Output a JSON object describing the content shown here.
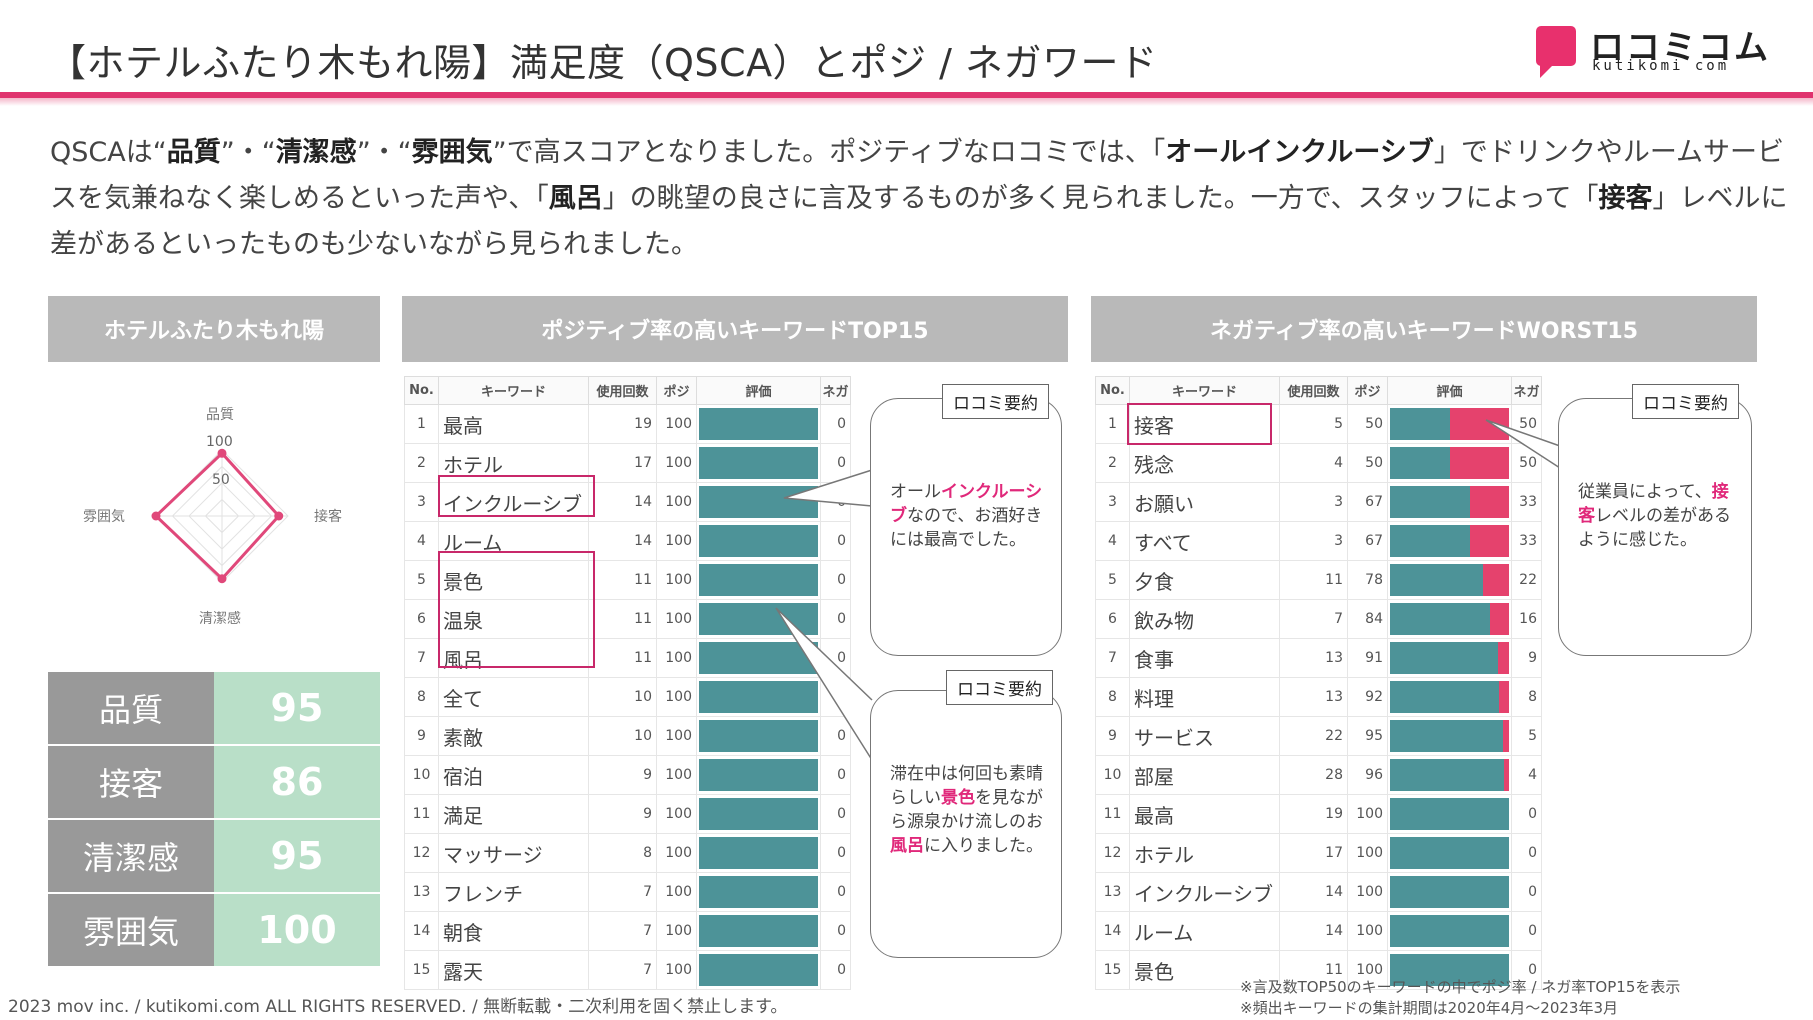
{
  "header": {
    "title": "【ホテルふたり木もれ陽】満足度（QSCA）とポジ / ネガワード",
    "logo_text": "ロコミコム",
    "logo_sub": "kutikomi com"
  },
  "summary": {
    "p1": "QSCAは“",
    "b1": "品質",
    "p2": "”・“",
    "b2": "清潔感",
    "p3": "”・“",
    "b3": "雰囲気",
    "p4": "”で高スコアとなりました。ポジティブなロコミでは、「",
    "b4": "オールインクルーシブ",
    "p5": "」でドリンクやルームサービスを気兼ねなく楽しめるといった声や、「",
    "b5": "風呂",
    "p6": "」の眺望の良さに言及するものが多く見られました。一方で、スタッフによって「",
    "b6": "接客",
    "p7": "」レベルに差があるといったものも少ないながら見られました。"
  },
  "panels": {
    "left_title": "ホテルふたり木もれ陽",
    "pos_title": "ポジティブ率の高いキーワードTOP15",
    "neg_title": "ネガティブ率の高いキーワードWORST15"
  },
  "radar": {
    "axes": [
      "品質",
      "接客",
      "清潔感",
      "雰囲気"
    ],
    "values": [
      95,
      86,
      95,
      100
    ],
    "ticks": [
      "100",
      "50"
    ],
    "max": 100
  },
  "scores": [
    {
      "label": "品質",
      "value": "95"
    },
    {
      "label": "接客",
      "value": "86"
    },
    {
      "label": "清潔感",
      "value": "95"
    },
    {
      "label": "雰囲気",
      "value": "100"
    }
  ],
  "table_headers": {
    "no": "No.",
    "keyword": "キーワード",
    "count": "使用回数",
    "posi": "ポジ",
    "rating": "評価",
    "nega": "ネガ"
  },
  "positive_keywords": [
    {
      "no": "1",
      "word": "最高",
      "count": "19",
      "posi": "100",
      "nega": "0"
    },
    {
      "no": "2",
      "word": "ホテル",
      "count": "17",
      "posi": "100",
      "nega": "0"
    },
    {
      "no": "3",
      "word": "インクルーシブ",
      "count": "14",
      "posi": "100",
      "nega": "0"
    },
    {
      "no": "4",
      "word": "ルーム",
      "count": "14",
      "posi": "100",
      "nega": "0"
    },
    {
      "no": "5",
      "word": "景色",
      "count": "11",
      "posi": "100",
      "nega": "0"
    },
    {
      "no": "6",
      "word": "温泉",
      "count": "11",
      "posi": "100",
      "nega": "0"
    },
    {
      "no": "7",
      "word": "風呂",
      "count": "11",
      "posi": "100",
      "nega": "0"
    },
    {
      "no": "8",
      "word": "全て",
      "count": "10",
      "posi": "100",
      "nega": "0"
    },
    {
      "no": "9",
      "word": "素敵",
      "count": "10",
      "posi": "100",
      "nega": "0"
    },
    {
      "no": "10",
      "word": "宿泊",
      "count": "9",
      "posi": "100",
      "nega": "0"
    },
    {
      "no": "11",
      "word": "満足",
      "count": "9",
      "posi": "100",
      "nega": "0"
    },
    {
      "no": "12",
      "word": "マッサージ",
      "count": "8",
      "posi": "100",
      "nega": "0"
    },
    {
      "no": "13",
      "word": "フレンチ",
      "count": "7",
      "posi": "100",
      "nega": "0"
    },
    {
      "no": "14",
      "word": "朝食",
      "count": "7",
      "posi": "100",
      "nega": "0"
    },
    {
      "no": "15",
      "word": "露天",
      "count": "7",
      "posi": "100",
      "nega": "0"
    }
  ],
  "negative_keywords": [
    {
      "no": "1",
      "word": "接客",
      "count": "5",
      "posi": "50",
      "nega": "50"
    },
    {
      "no": "2",
      "word": "残念",
      "count": "4",
      "posi": "50",
      "nega": "50"
    },
    {
      "no": "3",
      "word": "お願い",
      "count": "3",
      "posi": "67",
      "nega": "33"
    },
    {
      "no": "4",
      "word": "すべて",
      "count": "3",
      "posi": "67",
      "nega": "33"
    },
    {
      "no": "5",
      "word": "夕食",
      "count": "11",
      "posi": "78",
      "nega": "22"
    },
    {
      "no": "6",
      "word": "飲み物",
      "count": "7",
      "posi": "84",
      "nega": "16"
    },
    {
      "no": "7",
      "word": "食事",
      "count": "13",
      "posi": "91",
      "nega": "9"
    },
    {
      "no": "8",
      "word": "料理",
      "count": "13",
      "posi": "92",
      "nega": "8"
    },
    {
      "no": "9",
      "word": "サービス",
      "count": "22",
      "posi": "95",
      "nega": "5"
    },
    {
      "no": "10",
      "word": "部屋",
      "count": "28",
      "posi": "96",
      "nega": "4"
    },
    {
      "no": "11",
      "word": "最高",
      "count": "19",
      "posi": "100",
      "nega": "0"
    },
    {
      "no": "12",
      "word": "ホテル",
      "count": "17",
      "posi": "100",
      "nega": "0"
    },
    {
      "no": "13",
      "word": "インクルーシブ",
      "count": "14",
      "posi": "100",
      "nega": "0"
    },
    {
      "no": "14",
      "word": "ルーム",
      "count": "14",
      "posi": "100",
      "nega": "0"
    },
    {
      "no": "15",
      "word": "景色",
      "count": "11",
      "posi": "100",
      "nega": "0"
    }
  ],
  "callouts": {
    "tag": "ロコミ要約",
    "c1_a": "オール",
    "c1_hl": "インクルーシブ",
    "c1_b": "なので、お酒好きには最高でした。",
    "c2_a": "滞在中は何回も素晴らしい",
    "c2_hl1": "景色",
    "c2_b": "を見ながら源泉かけ流しのお",
    "c2_hl2": "風呂",
    "c2_c": "に入りました。",
    "c3_a": "従業員によって、",
    "c3_hl": "接客",
    "c3_b": "レベルの差があるように感じた。"
  },
  "footer": {
    "copyright": "2023 mov inc. / kutikomi.com ALL RIGHTS RESERVED. / 無断転載・二次利用を固く禁止します。",
    "note1": "※言及数TOP50のキーワードの中でポジ率 / ネガ率TOP15を表示",
    "note2": "※頻出キーワードの集計期間は2020年4月～2023年3月"
  },
  "colors": {
    "accent": "#e0336e",
    "bar_positive": "#4d9398",
    "bar_negative": "#e5426d",
    "score_bg": "#b9dfc8"
  }
}
